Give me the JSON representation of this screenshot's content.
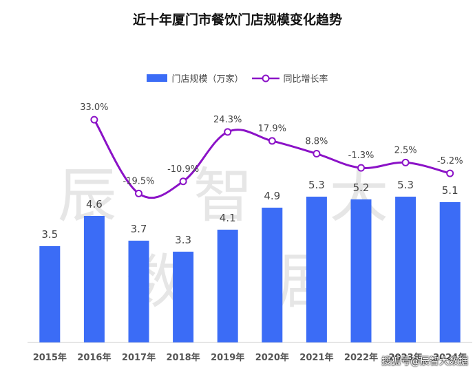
{
  "chart_data": {
    "type": "bar",
    "title": "近十年厦门市餐饮门店规模变化趋势",
    "categories": [
      "2015年",
      "2016年",
      "2017年",
      "2018年",
      "2019年",
      "2020年",
      "2021年",
      "2022年",
      "2023年",
      "2024年"
    ],
    "series": [
      {
        "name": "门店规模（万家）",
        "type": "bar",
        "color": "#3B6CF6",
        "values": [
          3.5,
          4.6,
          3.7,
          3.3,
          4.1,
          4.9,
          5.3,
          5.2,
          5.3,
          5.1
        ],
        "labels": [
          "3.5",
          "4.6",
          "3.7",
          "3.3",
          "4.1",
          "4.9",
          "5.3",
          "5.2",
          "5.3",
          "5.1"
        ]
      },
      {
        "name": "同比增长率",
        "type": "line",
        "color": "#8B12C7",
        "values": [
          null,
          33.0,
          -19.5,
          -10.9,
          24.3,
          17.9,
          8.8,
          -1.3,
          2.5,
          -5.2
        ],
        "labels": [
          "",
          "33.0%",
          "-19.5%",
          "-10.9%",
          "24.3%",
          "17.9%",
          "8.8%",
          "-1.3%",
          "2.5%",
          "-5.2%"
        ]
      }
    ],
    "ylim_bar": [
      0,
      9
    ],
    "ylim_line": [
      -30,
      40
    ],
    "legend_position": "top-center",
    "grid": false
  },
  "watermark": "辰 智 大 数 据",
  "corner_mark": "搜狐号@辰智大数据"
}
